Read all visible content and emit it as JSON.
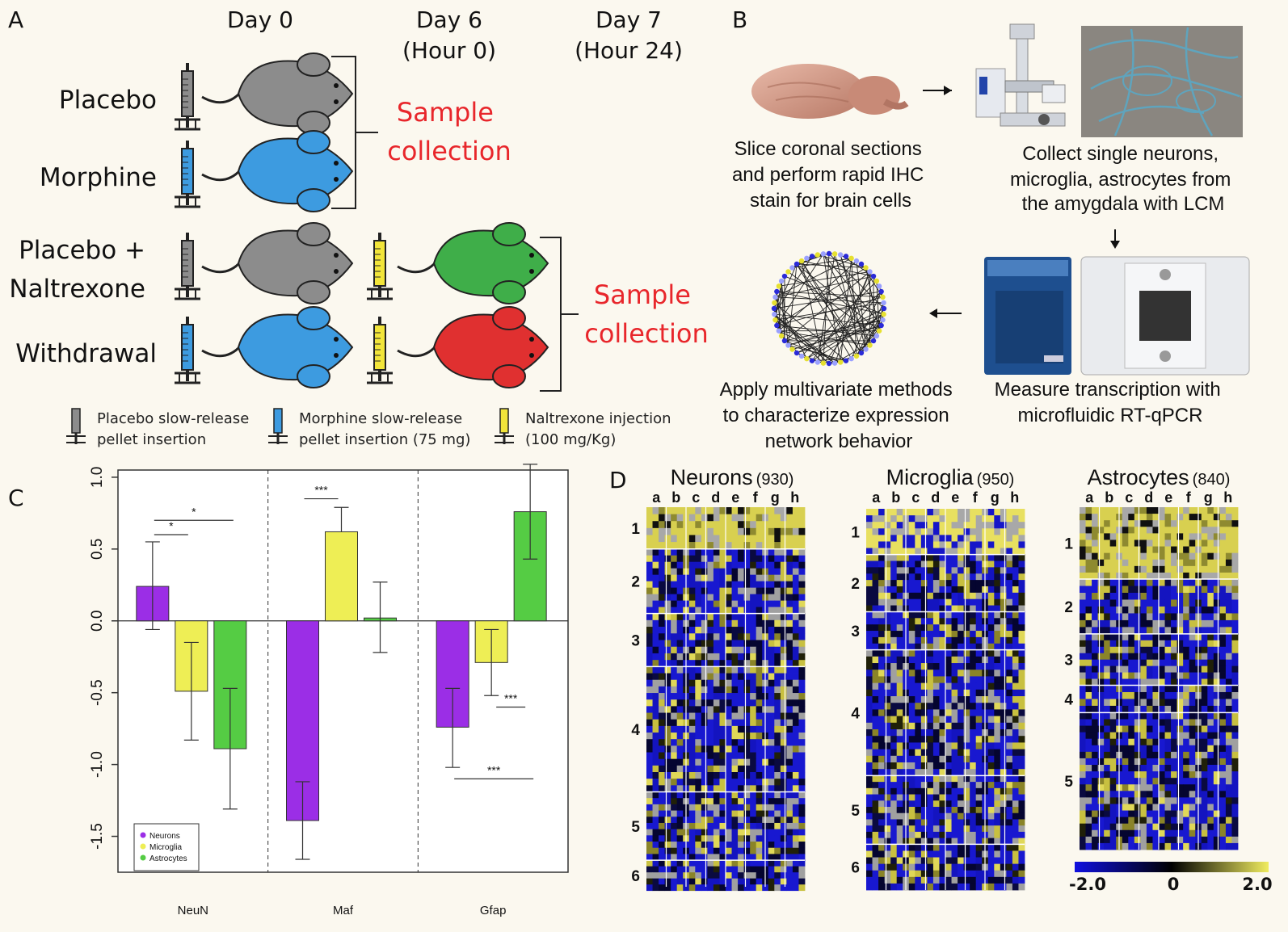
{
  "panels": {
    "A": {
      "label": "A",
      "headers": [
        {
          "lines": [
            "Day 0"
          ]
        },
        {
          "lines": [
            "Day 6",
            "(Hour 0)"
          ]
        },
        {
          "lines": [
            "Day 7",
            "(Hour 24)"
          ]
        }
      ],
      "groups": [
        {
          "lines": [
            "Placebo"
          ],
          "pellet": "gray",
          "mouse": "#8c8c8c"
        },
        {
          "lines": [
            "Morphine"
          ],
          "pellet": "blue",
          "mouse": "#3d9be0"
        },
        {
          "lines": [
            "Placebo +",
            "Naltrexone"
          ],
          "pellet": "gray",
          "mouse": "#8c8c8c",
          "injection": true,
          "mouse2": "#3fae49"
        },
        {
          "lines": [
            "Withdrawal"
          ],
          "pellet": "blue",
          "mouse": "#3d9be0",
          "injection": true,
          "mouse2": "#e03030"
        }
      ],
      "sample_collection_1": [
        "Sample",
        "collection"
      ],
      "sample_collection_2": [
        "Sample",
        "collection"
      ],
      "legend": [
        {
          "lines": [
            "Placebo slow-release",
            "pellet insertion"
          ],
          "color": "#8c8c8c"
        },
        {
          "lines": [
            "Morphine slow-release",
            "pellet insertion (75 mg)"
          ],
          "color": "#3d9be0"
        },
        {
          "lines": [
            "Naltrexone injection",
            "(100 mg/Kg)"
          ],
          "color": "#f2e53a"
        }
      ]
    },
    "B": {
      "label": "B",
      "step1": [
        "Slice coronal sections",
        "and perform rapid IHC",
        "stain for brain cells"
      ],
      "step2": [
        "Collect single neurons,",
        "microglia, astrocytes from",
        "the amygdala with LCM"
      ],
      "step3": [
        "Measure transcription with",
        "microfluidic RT-qPCR"
      ],
      "step4": [
        "Apply multivariate methods",
        "to characterize expression",
        "network behavior"
      ]
    },
    "C": {
      "label": "C"
    },
    "D": {
      "label": "D",
      "heatmaps": [
        {
          "title": "Neurons",
          "count": "(930)",
          "cols": [
            "a",
            "b",
            "c",
            "d",
            "e",
            "f",
            "g",
            "h"
          ],
          "rows": [
            "1",
            "2",
            "3",
            "4",
            "5",
            "6"
          ],
          "row_frac": [
            0.11,
            0.17,
            0.14,
            0.33,
            0.18,
            0.08
          ]
        },
        {
          "title": "Microglia",
          "count": "(950)",
          "cols": [
            "a",
            "b",
            "c",
            "d",
            "e",
            "f",
            "g",
            "h"
          ],
          "rows": [
            "1",
            "2",
            "3",
            "4",
            "5",
            "6"
          ],
          "row_frac": [
            0.12,
            0.15,
            0.1,
            0.33,
            0.18,
            0.12
          ]
        },
        {
          "title": "Astrocytes",
          "count": "(840)",
          "cols": [
            "a",
            "b",
            "c",
            "d",
            "e",
            "f",
            "g",
            "h"
          ],
          "rows": [
            "1",
            "2",
            "3",
            "4",
            "5"
          ],
          "row_frac": [
            0.21,
            0.16,
            0.15,
            0.08,
            0.4
          ]
        }
      ],
      "colorbar": {
        "min_label": "-2.0",
        "mid_label": "0",
        "max_label": "2.0",
        "colors": [
          "#1010e0",
          "#000000",
          "#f0ec60"
        ]
      }
    }
  },
  "chart_data": {
    "type": "bar",
    "categories": [
      "NeuN",
      "Maf",
      "Gfap"
    ],
    "series": [
      {
        "name": "Neurons",
        "color": "#9b2ee6",
        "values": [
          0.24,
          -1.39,
          -0.74
        ],
        "err_low": [
          -0.06,
          -1.66,
          -1.02
        ],
        "err_high": [
          0.55,
          -1.12,
          -0.47
        ]
      },
      {
        "name": "Microglia",
        "color": "#eeee55",
        "values": [
          -0.49,
          0.62,
          -0.29
        ],
        "err_low": [
          -0.83,
          null,
          -0.52
        ],
        "err_high": [
          -0.15,
          0.79,
          -0.06
        ]
      },
      {
        "name": "Astrocytes",
        "color": "#55cc44",
        "values": [
          -0.89,
          0.02,
          0.76
        ],
        "err_low": [
          -1.31,
          -0.22,
          0.43
        ],
        "err_high": [
          -0.47,
          0.27,
          1.09
        ]
      }
    ],
    "ylim": [
      -1.75,
      1.05
    ],
    "yticks": [
      "1.0",
      "0.5",
      "0.0",
      "-0.5",
      "-1.0",
      "-1.5"
    ],
    "ytick_values": [
      1.0,
      0.5,
      0.0,
      -0.5,
      -1.0,
      -1.5
    ],
    "significance": [
      "*",
      "*",
      "***",
      "***",
      "***"
    ],
    "legend_position": "bottom-left"
  }
}
